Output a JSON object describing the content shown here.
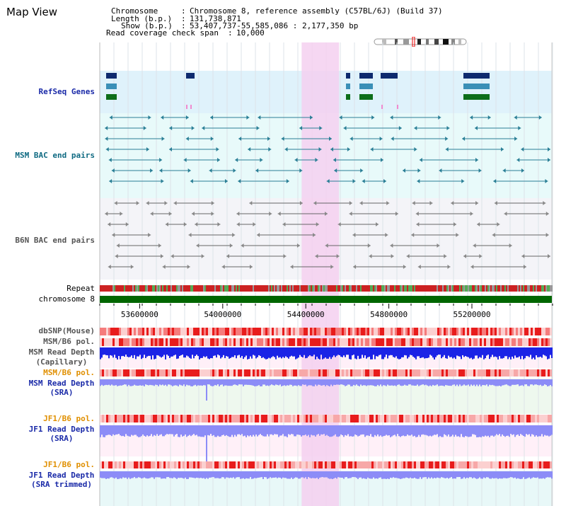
{
  "title": "Map View",
  "info": {
    "chromosome_key": "Chromosome",
    "chromosome_val": "Chromosome 8, reference assembly (C57BL/6J) (Build 37)",
    "length_key": "Length (b.p.)",
    "length_val": "131,738,871",
    "show_key": "Show (b.p.)",
    "show_val": "53,407,737-55,585,086 : 2,177,350 bp",
    "coverage_key": "Read coverage check span",
    "coverage_val": "10,000"
  },
  "tracks": {
    "refseq": "RefSeq Genes",
    "msm_bac": "MSM BAC end pairs",
    "b6n_bac": "B6N BAC end pairs",
    "repeat": "Repeat",
    "chromosome": "chromosome 8",
    "dbsnp": "dbSNP(Mouse)",
    "msm_b6_pol": "MSM/B6 pol.",
    "msm_read_depth": "MSM Read Depth",
    "capillary": "(Capillary)",
    "msm_b6_pol2": "MSM/B6 pol.",
    "msm_read_depth_sra": "MSM Read Depth",
    "sra": "(SRA)",
    "jf1_b6_pol": "JF1/B6 pol.",
    "jf1_read_depth": "JF1 Read Depth",
    "jf1_sra": "(SRA)",
    "jf1_b6_pol2": "JF1/B6 pol.",
    "jf1_read_depth2": "JF1 Read Depth",
    "sra_trimmed": "(SRA trimmed)"
  },
  "axis": {
    "ticks": [
      "53600000",
      "54000000",
      "54400000",
      "54800000",
      "55200000"
    ],
    "tick_values": [
      53600000,
      54000000,
      54400000,
      54800000,
      55200000
    ],
    "range": [
      53407737,
      55585086
    ],
    "highlight": [
      54380000,
      54560000
    ]
  },
  "colors": {
    "highlight": "#f5d0f0",
    "refseq_bg": "#dff2fb",
    "msm_bg": "#e8fafa",
    "b6n_bg": "#f4f4f8",
    "chromosome": "#006600",
    "gene_navy": "#0d2a6e",
    "gene_blue": "#3a8fb7",
    "gene_green": "#0d6e1a",
    "snp": "#f57c7c",
    "depth_dark": "#1b23e6",
    "depth_light": "#8c8cf7"
  }
}
